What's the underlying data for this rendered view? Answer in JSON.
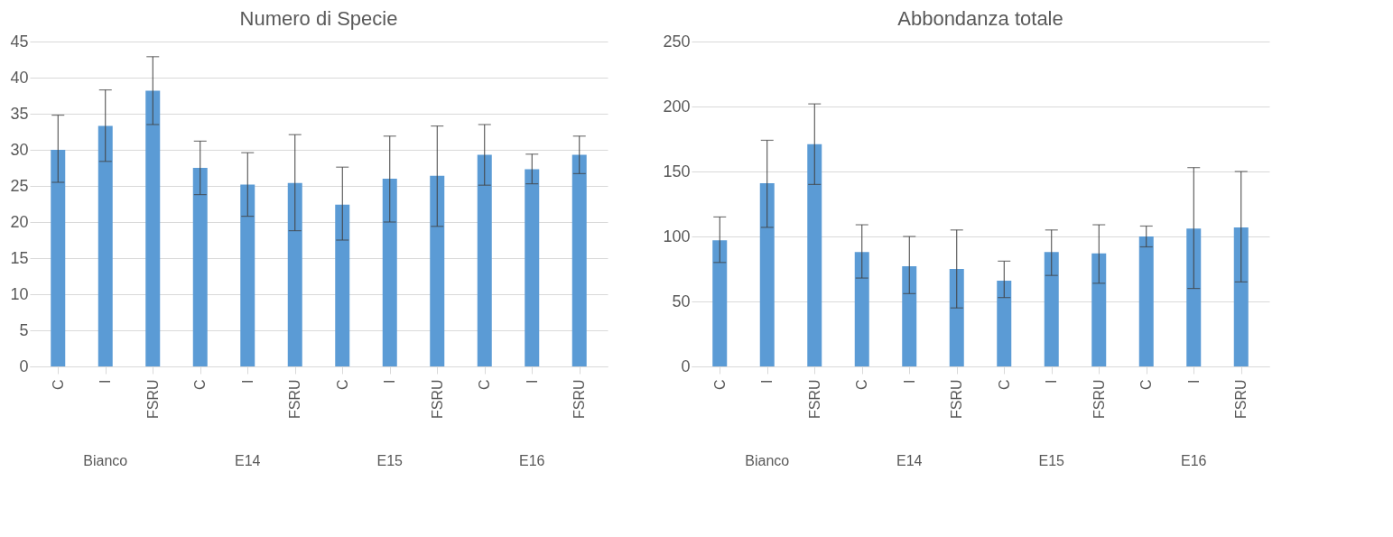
{
  "chart_data": [
    {
      "type": "bar",
      "title": "Numero di Specie",
      "categories": [
        "C",
        "I",
        "FSRU",
        "C",
        "I",
        "FSRU",
        "C",
        "I",
        "FSRU",
        "C",
        "I",
        "FSRU"
      ],
      "values": [
        30,
        33.3,
        38.2,
        27.5,
        25.2,
        25.4,
        22.4,
        26,
        26.4,
        29.3,
        27.3,
        29.3
      ],
      "errors": [
        [
          25.5,
          34.8
        ],
        [
          28.4,
          38.3
        ],
        [
          33.5,
          42.9
        ],
        [
          23.8,
          31.2
        ],
        [
          20.8,
          29.6
        ],
        [
          18.8,
          32.1
        ],
        [
          17.5,
          27.6
        ],
        [
          20,
          31.9
        ],
        [
          19.4,
          33.3
        ],
        [
          25.1,
          33.5
        ],
        [
          25.3,
          29.4
        ],
        [
          26.7,
          31.9
        ]
      ],
      "color": "#5b9bd5",
      "ylim": [
        0,
        45
      ],
      "yticks": [
        0,
        5,
        10,
        15,
        20,
        25,
        30,
        35,
        40,
        45
      ],
      "grid": "y",
      "legend": false,
      "annotations": [
        "Bianco",
        "E14",
        "E15",
        "E16"
      ]
    },
    {
      "type": "bar",
      "title": "Abbondanza totale",
      "categories": [
        "C",
        "I",
        "FSRU",
        "C",
        "I",
        "FSRU",
        "C",
        "I",
        "FSRU",
        "C",
        "I",
        "FSRU"
      ],
      "values": [
        97,
        141,
        171,
        88,
        77,
        75,
        66,
        88,
        87,
        100,
        106,
        107
      ],
      "errors": [
        [
          80,
          115
        ],
        [
          107,
          174
        ],
        [
          140,
          202
        ],
        [
          68,
          109
        ],
        [
          56,
          100
        ],
        [
          45,
          105
        ],
        [
          53,
          81
        ],
        [
          70,
          105
        ],
        [
          64,
          109
        ],
        [
          92,
          108
        ],
        [
          60,
          153
        ],
        [
          65,
          150
        ]
      ],
      "color": "#5b9bd5",
      "ylim": [
        0,
        250
      ],
      "yticks": [
        0,
        50,
        100,
        150,
        200,
        250
      ],
      "grid": "y",
      "legend": false,
      "annotations": [
        "Bianco",
        "E14",
        "E15",
        "E16"
      ]
    }
  ]
}
